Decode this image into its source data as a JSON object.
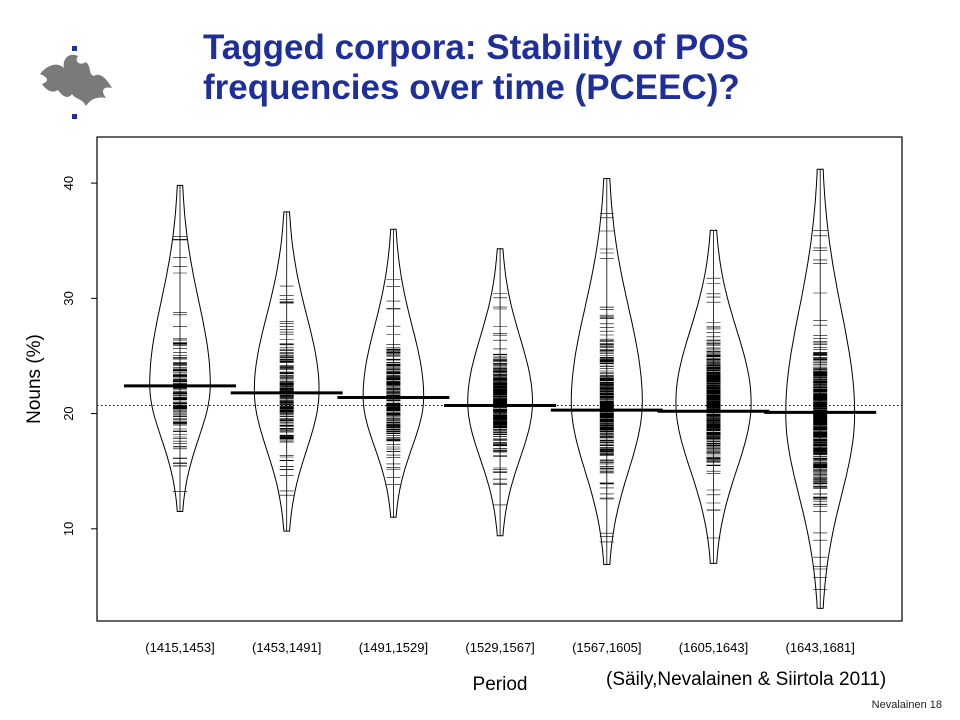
{
  "slide": {
    "title_line1": "Tagged corpora: Stability of POS",
    "title_line2": "frequencies over time (PCEEC)?",
    "citation": "(Säily,Nevalainen & Siirtola 2011)",
    "footer": "Nevalainen 18"
  },
  "colors": {
    "title": "#1f2f9a",
    "ink": "#000000",
    "logo": "#7a7a7a"
  },
  "logo_icon": "flame-logo-icon",
  "chart_data": {
    "type": "beanplot",
    "title": "",
    "xlabel": "Period",
    "ylabel": "Nouns (%)",
    "ylim": [
      2,
      44
    ],
    "yticks": [
      10,
      20,
      30,
      40
    ],
    "categories": [
      "(1415,1453]",
      "(1453,1491]",
      "(1491,1529]",
      "(1529,1567]",
      "(1567,1605]",
      "(1605,1643]",
      "(1643,1681]"
    ],
    "means": [
      22.4,
      21.8,
      21.4,
      20.7,
      20.3,
      20.2,
      20.1
    ],
    "overall_mean": 20.7,
    "ranges": [
      [
        11.5,
        39.8
      ],
      [
        9.8,
        37.5
      ],
      [
        11.0,
        36.0
      ],
      [
        9.4,
        34.3
      ],
      [
        6.9,
        40.4
      ],
      [
        7.0,
        35.9
      ],
      [
        3.1,
        41.2
      ]
    ],
    "mode_center": [
      22.5,
      22.0,
      21.5,
      21.0,
      21.0,
      21.0,
      20.0
    ],
    "max_width": [
      0.56,
      0.6,
      0.56,
      0.6,
      0.66,
      0.7,
      0.64
    ]
  }
}
